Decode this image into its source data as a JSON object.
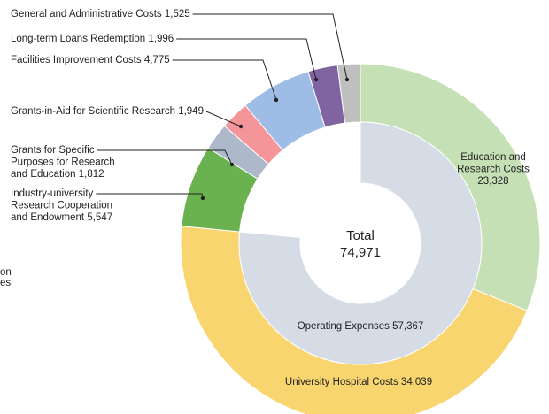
{
  "chart_data": {
    "type": "donut",
    "center_label": "Total",
    "total": 74971,
    "total_label": "74,971",
    "categories": [
      "Education and\nResearch Costs",
      "University Hospital Costs",
      "Industry-university\nResearch Cooperation\nand Endowment",
      "Grants for Specific\nPurposes for Research\nand Education",
      "Grants-in-Aid for Scientific Research",
      "Facilities Improvement Costs",
      "Long-term Loans Redemption",
      "General and Administrative Costs"
    ],
    "values": [
      23328,
      34039,
      5547,
      1812,
      1949,
      4775,
      1996,
      1525
    ],
    "value_labels": [
      "23,328",
      "34,039",
      "5,547",
      "1,812",
      "1,949",
      "4,775",
      "1,996",
      "1,525"
    ],
    "colors": [
      "#c5e0b4",
      "#f9d56f",
      "#6ab150",
      "#adb9ca",
      "#f4959a",
      "#9dbde6",
      "#8064a2",
      "#bfbfbf"
    ],
    "inner": {
      "name": "Operating Expenses",
      "value": 57367,
      "value_label": "57,367",
      "color": "#d6dce6"
    },
    "cropped_labels": [
      "on",
      "es"
    ]
  }
}
